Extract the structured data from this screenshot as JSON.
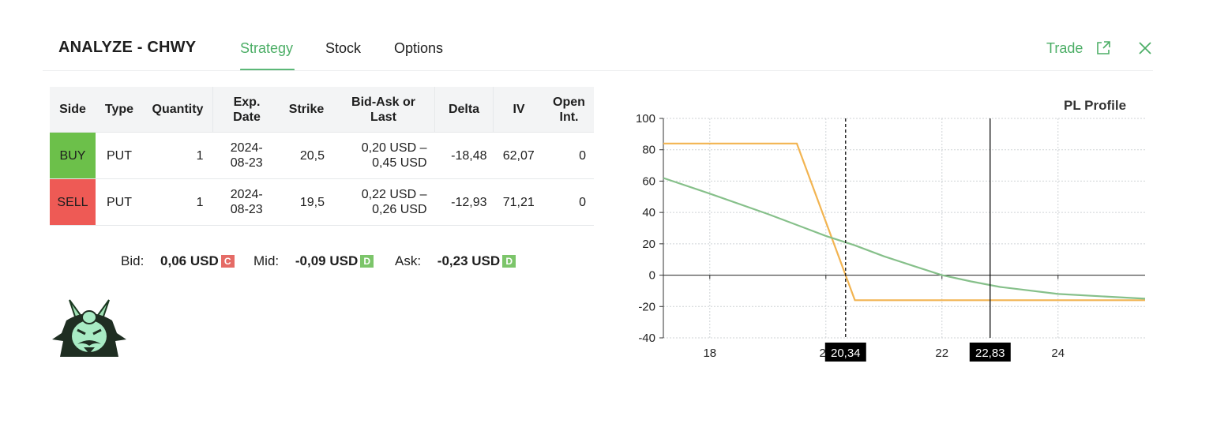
{
  "header": {
    "title": "ANALYZE - CHWY",
    "tabs": [
      {
        "label": "Strategy",
        "active": true
      },
      {
        "label": "Stock",
        "active": false
      },
      {
        "label": "Options",
        "active": false
      }
    ],
    "trade_label": "Trade",
    "trade_icon": "external-link-icon",
    "close_icon": "close-icon",
    "accent_color": "#4cae66"
  },
  "table": {
    "headers": {
      "side": "Side",
      "type": "Type",
      "quantity": "Quantity",
      "exp_date_1": "Exp.",
      "exp_date_2": "Date",
      "strike": "Strike",
      "bidask_1": "Bid-Ask or",
      "bidask_2": "Last",
      "delta": "Delta",
      "iv": "IV",
      "open_int_1": "Open",
      "open_int_2": "Int."
    },
    "rows": [
      {
        "side": "BUY",
        "side_color": "#6cc04a",
        "type": "PUT",
        "quantity": "1",
        "exp_1": "2024-",
        "exp_2": "08-23",
        "strike": "20,5",
        "bidask_1": "0,20 USD –",
        "bidask_2": "0,45 USD",
        "delta": "-18,48",
        "iv": "62,07",
        "open_int": "0"
      },
      {
        "side": "SELL",
        "side_color": "#ee5a55",
        "type": "PUT",
        "quantity": "1",
        "exp_1": "2024-",
        "exp_2": "08-23",
        "strike": "19,5",
        "bidask_1": "0,22 USD –",
        "bidask_2": "0,26 USD",
        "delta": "-12,93",
        "iv": "71,21",
        "open_int": "0"
      }
    ]
  },
  "quote": {
    "bid_label": "Bid:",
    "bid_value": "0,06 USD",
    "bid_badge": "C",
    "mid_label": "Mid:",
    "mid_value": "-0,09 USD",
    "mid_badge": "D",
    "ask_label": "Ask:",
    "ask_value": "-0,23 USD",
    "ask_badge": "D",
    "badge_c_color": "#e56b66",
    "badge_d_color": "#7cc56a"
  },
  "logo": "samurai-helmet-logo",
  "chart_data": {
    "type": "line",
    "title": "PL Profile",
    "xlim": [
      17.2,
      25.5
    ],
    "ylim": [
      -40,
      100
    ],
    "yticks": [
      100,
      80,
      60,
      40,
      20,
      0,
      -20,
      -40
    ],
    "xticks": [
      {
        "value": 18,
        "label": "18"
      },
      {
        "value": 20,
        "label": "20"
      },
      {
        "value": 22,
        "label": "22"
      },
      {
        "value": 24,
        "label": "24"
      }
    ],
    "grid": true,
    "series": [
      {
        "color": "#f2b451",
        "x": [
          17.2,
          19.5,
          20.5,
          25.5
        ],
        "y": [
          84,
          84,
          -16,
          -16
        ]
      },
      {
        "color": "#86c08a",
        "x": [
          17.2,
          18,
          19,
          20,
          20.5,
          21,
          21.5,
          22,
          22.5,
          23,
          24,
          25.5
        ],
        "y": [
          62,
          52,
          39,
          25,
          19,
          12,
          6,
          0,
          -4,
          -7.5,
          -12,
          -15
        ]
      }
    ],
    "markers": [
      {
        "x": 20.34,
        "label": "20,34",
        "style": "dashed"
      },
      {
        "x": 22.83,
        "label": "22,83",
        "style": "solid"
      }
    ]
  }
}
